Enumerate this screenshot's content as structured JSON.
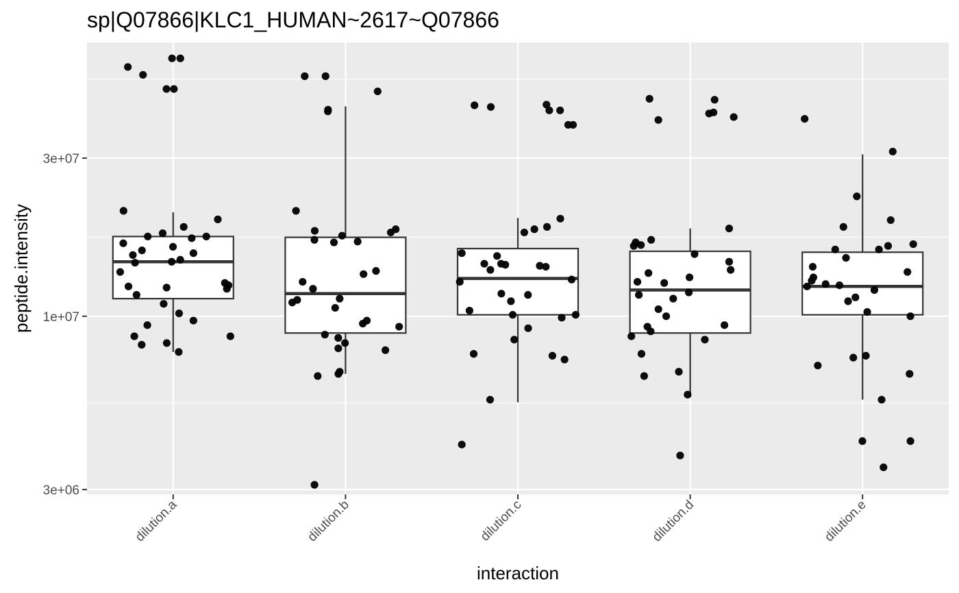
{
  "chart_data": {
    "type": "box",
    "title": "sp|Q07866|KLC1_HUMAN~2617~Q07866",
    "xlabel": "interaction",
    "ylabel": "peptide.intensity",
    "y_scale": "log10",
    "ylim": [
      2900000,
      67000000
    ],
    "y_ticks": [
      {
        "value": 3000000,
        "label": "3e+06"
      },
      {
        "value": 10000000,
        "label": "1e+07"
      },
      {
        "value": 30000000,
        "label": "3e+07"
      }
    ],
    "grid": true,
    "categories": [
      "dilution.a",
      "dilution.b",
      "dilution.c",
      "dilution.d",
      "dilution.e"
    ],
    "boxes": [
      {
        "category": "dilution.a",
        "whisker_low": 7800000,
        "q1": 11300000,
        "median": 14600000,
        "q3": 17400000,
        "whisker_high": 20600000
      },
      {
        "category": "dilution.b",
        "whisker_low": 6700000,
        "q1": 8900000,
        "median": 11700000,
        "q3": 17300000,
        "whisker_high": 43000000
      },
      {
        "category": "dilution.c",
        "whisker_low": 5500000,
        "q1": 10100000,
        "median": 13000000,
        "q3": 16000000,
        "whisker_high": 19800000
      },
      {
        "category": "dilution.d",
        "whisker_low": 5700000,
        "q1": 8900000,
        "median": 12000000,
        "q3": 15700000,
        "whisker_high": 18400000
      },
      {
        "category": "dilution.e",
        "whisker_low": 5600000,
        "q1": 10100000,
        "median": 12300000,
        "q3": 15600000,
        "whisker_high": 30800000
      }
    ],
    "points": [
      {
        "category": "dilution.a",
        "values": [
          60000000,
          60000000,
          56500000,
          53500000,
          48500000,
          48500000,
          20800000,
          19600000,
          18600000,
          17800000,
          17400000,
          17400000,
          17200000,
          16600000,
          16200000,
          15800000,
          15500000,
          15300000,
          14800000,
          14600000,
          14500000,
          13600000,
          12600000,
          12400000,
          12300000,
          12200000,
          12100000,
          11600000,
          10900000,
          10200000,
          9700000,
          9400000,
          8700000,
          8700000,
          8300000,
          8200000,
          7800000
        ]
      },
      {
        "category": "dilution.b",
        "values": [
          53000000,
          53000000,
          47700000,
          42000000,
          41500000,
          20800000,
          18300000,
          18100000,
          17900000,
          17500000,
          17000000,
          16800000,
          16700000,
          13700000,
          13400000,
          12700000,
          12100000,
          11300000,
          11200000,
          11000000,
          10600000,
          9700000,
          9500000,
          9300000,
          8800000,
          8600000,
          8300000,
          8000000,
          7900000,
          6800000,
          6700000,
          6600000,
          3100000
        ]
      },
      {
        "category": "dilution.c",
        "values": [
          43500000,
          43300000,
          42800000,
          41800000,
          41800000,
          37800000,
          37800000,
          19700000,
          18600000,
          18300000,
          17900000,
          15500000,
          15200000,
          14400000,
          14400000,
          14300000,
          14200000,
          14100000,
          13800000,
          12900000,
          12700000,
          11700000,
          11600000,
          11100000,
          10400000,
          10100000,
          10100000,
          9900000,
          9200000,
          8500000,
          7700000,
          7600000,
          7400000,
          5600000,
          4100000
        ]
      },
      {
        "category": "dilution.d",
        "values": [
          45300000,
          45000000,
          41200000,
          40900000,
          39900000,
          39100000,
          18400000,
          17000000,
          16700000,
          16400000,
          16300000,
          15400000,
          14600000,
          13800000,
          13500000,
          13100000,
          12700000,
          12600000,
          11800000,
          11600000,
          11300000,
          10500000,
          10000000,
          9400000,
          9300000,
          9000000,
          8700000,
          8500000,
          7700000,
          6800000,
          6600000,
          5800000,
          3800000
        ]
      },
      {
        "category": "dilution.e",
        "values": [
          39400000,
          31400000,
          23000000,
          19500000,
          18600000,
          16500000,
          16300000,
          15900000,
          15900000,
          15000000,
          14100000,
          13600000,
          13100000,
          12800000,
          12500000,
          12400000,
          12300000,
          12000000,
          11400000,
          11100000,
          10300000,
          10000000,
          7600000,
          7500000,
          7100000,
          6700000,
          5600000,
          4200000,
          4200000,
          3500000
        ]
      }
    ]
  }
}
